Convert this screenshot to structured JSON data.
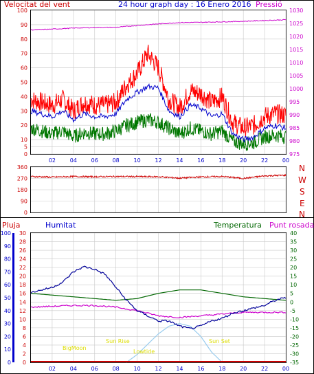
{
  "page": {
    "title": "24 hour graph day : 16 Enero 2016"
  },
  "colors": {
    "wind_speed": "#ff0000",
    "wind_avg": "#0000cc",
    "wind_low": "#007700",
    "pressure": "#cc00cc",
    "direction": "#cc0000",
    "humidity": "#000099",
    "temperature": "#006600",
    "dewpoint": "#cc00cc",
    "rain": "#cc0000",
    "solar": "#99ccee",
    "sun_labels": "#dddd00",
    "left_axis_red": "#cc0000",
    "left_axis_blue": "#0000cc",
    "right_axis_magenta": "#cc00cc",
    "right_axis_green": "#006600"
  },
  "chart_data": [
    {
      "type": "line",
      "name": "wind",
      "left_label": "Velocitat del vent",
      "right_label": "Pressió",
      "x_ticks": [
        "02",
        "04",
        "06",
        "08",
        "10",
        "12",
        "14",
        "16",
        "18",
        "20",
        "22",
        "00"
      ],
      "y_left_ticks": [
        "0",
        "5",
        "10",
        "20",
        "30",
        "40",
        "50",
        "60",
        "70",
        "80",
        "90",
        "100"
      ],
      "y_left_values": [
        0,
        5,
        10,
        20,
        30,
        40,
        50,
        60,
        70,
        80,
        90,
        100
      ],
      "y_right_ticks": [
        "975",
        "980",
        "985",
        "990",
        "995",
        "1000",
        "1005",
        "1010",
        "1015",
        "1020",
        "1025",
        "1030"
      ],
      "ylim_left": [
        0,
        100
      ],
      "ylim_right": [
        975,
        1030
      ],
      "grid": true,
      "series": [
        {
          "key": "gust",
          "hours": [
            0,
            1,
            2,
            3,
            4,
            5,
            6,
            7,
            8,
            9,
            10,
            11,
            12,
            13,
            14,
            15,
            16,
            17,
            18,
            19,
            20,
            21,
            22,
            23,
            24
          ],
          "values": [
            38,
            36,
            34,
            38,
            30,
            36,
            34,
            34,
            36,
            48,
            56,
            70,
            60,
            38,
            32,
            44,
            42,
            36,
            40,
            22,
            18,
            20,
            26,
            28,
            27
          ]
        },
        {
          "key": "average",
          "hours": [
            0,
            1,
            2,
            3,
            4,
            5,
            6,
            7,
            8,
            9,
            10,
            11,
            12,
            13,
            14,
            15,
            16,
            17,
            18,
            19,
            20,
            21,
            22,
            23,
            24
          ],
          "values": [
            30,
            28,
            26,
            30,
            24,
            28,
            26,
            26,
            28,
            38,
            43,
            47,
            46,
            30,
            26,
            34,
            32,
            26,
            28,
            14,
            10,
            12,
            18,
            20,
            18
          ]
        },
        {
          "key": "low",
          "hours": [
            0,
            1,
            2,
            3,
            4,
            5,
            6,
            7,
            8,
            9,
            10,
            11,
            12,
            13,
            14,
            15,
            16,
            17,
            18,
            19,
            20,
            21,
            22,
            23,
            24
          ],
          "values": [
            18,
            16,
            14,
            16,
            12,
            15,
            14,
            14,
            16,
            20,
            22,
            24,
            22,
            18,
            14,
            18,
            16,
            14,
            16,
            9,
            7,
            8,
            12,
            13,
            12
          ]
        },
        {
          "key": "pressure",
          "axis": "right",
          "hours": [
            0,
            2,
            4,
            6,
            8,
            10,
            12,
            14,
            16,
            18,
            20,
            22,
            24
          ],
          "values": [
            1022.5,
            1022.8,
            1023.2,
            1023.4,
            1023.5,
            1024.2,
            1024.8,
            1025.3,
            1025.4,
            1025.6,
            1025.8,
            1026.1,
            1026.4
          ]
        }
      ]
    },
    {
      "type": "line",
      "name": "direction",
      "right_labels": [
        "N",
        "W",
        "S",
        "E",
        "N"
      ],
      "y_ticks": [
        "360",
        "270",
        "180",
        "90",
        "0"
      ],
      "y_values": [
        360,
        270,
        180,
        90,
        0
      ],
      "ylim": [
        0,
        360
      ],
      "series": [
        {
          "key": "direction",
          "hours": [
            0,
            2,
            4,
            6,
            8,
            10,
            12,
            14,
            16,
            18,
            20,
            22,
            24
          ],
          "values": [
            285,
            280,
            285,
            283,
            285,
            284,
            283,
            272,
            282,
            285,
            270,
            290,
            295
          ]
        }
      ]
    },
    {
      "type": "line",
      "name": "temp_hum",
      "top_labels": {
        "rain": "Pluja",
        "humidity": "Humitat",
        "temperature": "Temperatura",
        "dewpoint": "Punt rosada"
      },
      "rain_ticks": [
        "0",
        "2",
        "4",
        "6",
        "8",
        "10",
        "12",
        "14",
        "16",
        "18",
        "20",
        "22",
        "24",
        "26",
        "28",
        "30"
      ],
      "humidity_ticks": [
        "0",
        "10",
        "20",
        "30",
        "40",
        "50",
        "60",
        "70",
        "80",
        "90",
        "100"
      ],
      "temp_ticks": [
        "40",
        "35",
        "30",
        "25",
        "20",
        "15",
        "10",
        "5",
        "0",
        "-5",
        "-10",
        "-15",
        "-20",
        "-25",
        "-30",
        "-35"
      ],
      "x_ticks": [
        "02",
        "04",
        "06",
        "08",
        "10",
        "12",
        "14",
        "16",
        "18",
        "20",
        "22",
        "00"
      ],
      "ylim_humidity": [
        0,
        100
      ],
      "ylim_temp": [
        -35,
        40
      ],
      "ylim_rain": [
        0,
        30
      ],
      "sun_labels": {
        "sunrise": "Sun Rise",
        "sunset": "Sun Set",
        "bigmoon": "BigMoon",
        "moonrise": "Lowtide",
        "bigmoon2": "BigMoon",
        "sunset_short": "Sun Set"
      },
      "series": [
        {
          "key": "humidity",
          "hours": [
            0,
            1,
            2,
            3,
            4,
            5,
            6,
            7,
            8,
            9,
            10,
            11,
            12,
            13,
            14,
            15,
            16,
            17,
            18,
            19,
            20,
            21,
            22,
            23,
            24
          ],
          "values": [
            54,
            56,
            58,
            62,
            70,
            74,
            72,
            68,
            58,
            48,
            40,
            36,
            32,
            32,
            28,
            26,
            28,
            32,
            34,
            38,
            40,
            42,
            44,
            48,
            50
          ]
        },
        {
          "key": "temperature",
          "hours": [
            0,
            2,
            4,
            6,
            8,
            10,
            12,
            14,
            16,
            18,
            20,
            22,
            24
          ],
          "values": [
            5,
            4,
            3,
            2,
            1,
            2,
            5,
            7,
            7,
            5,
            3,
            2,
            1
          ]
        },
        {
          "key": "dewpoint",
          "hours": [
            0,
            2,
            4,
            6,
            8,
            10,
            12,
            14,
            16,
            18,
            20,
            22,
            24
          ],
          "values": [
            -3,
            -2.5,
            -2,
            -2,
            -3,
            -5,
            -8,
            -9,
            -8,
            -7,
            -6,
            -6,
            -6
          ]
        },
        {
          "key": "solar",
          "hours": [
            9,
            10,
            11,
            12,
            13,
            14,
            15,
            16,
            17,
            18
          ],
          "values": [
            0,
            6,
            14,
            22,
            28,
            30,
            28,
            20,
            8,
            0
          ]
        }
      ]
    }
  ]
}
